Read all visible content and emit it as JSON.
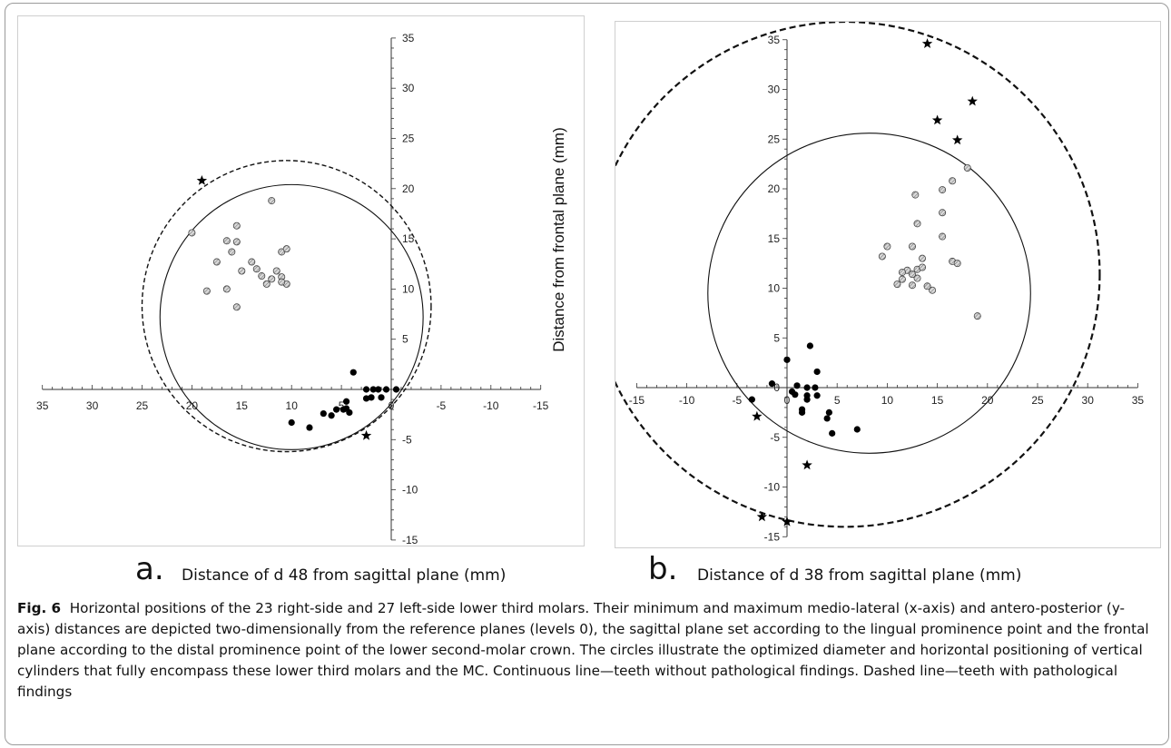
{
  "panels": [
    {
      "letter": "a.",
      "xlabel": "Distance of d 48 from sagittal plane (mm)",
      "ylabel": ""
    },
    {
      "letter": "b.",
      "xlabel": "Distance of d 38 from sagittal plane (mm)",
      "ylabel": "Distance from frontal plane (mm)"
    }
  ],
  "caption": {
    "label": "Fig. 6",
    "text": "Horizontal positions of the 23 right-side and 27 left-side lower third molars. Their minimum and maximum medio-lateral (x-axis) and antero-posterior (y-axis) distances are depicted two-dimensionally from the reference planes (levels 0), the sagittal plane set according to the lingual prominence point and the frontal plane according to the distal prominence point of the lower second-molar crown. The circles illustrate the optimized diameter and horizontal positioning of vertical cylinders that fully encompass these lower third molars and the MC. Continuous line—teeth without pathological findings. Dashed line—teeth with pathological findings"
  },
  "chart_data": [
    {
      "type": "scatter",
      "panel": "a",
      "x_reversed": true,
      "xlim": [
        35,
        -15
      ],
      "ylim": [
        -15,
        35
      ],
      "x_ticks": [
        35,
        30,
        25,
        20,
        15,
        10,
        5,
        0,
        -5,
        -10,
        -15
      ],
      "y_ticks": [
        -15,
        -10,
        -5,
        5,
        10,
        15,
        20,
        25,
        30,
        35
      ],
      "grid": false,
      "marker_legend": {
        "hatched_circle": "",
        "filled_circle": "",
        "star": ""
      },
      "series": [
        {
          "marker": "hatched_circle",
          "points": [
            [
              20,
              15.6
            ],
            [
              16.5,
              14.8
            ],
            [
              15.5,
              16.3
            ],
            [
              15.5,
              14.7
            ],
            [
              17.5,
              12.7
            ],
            [
              16,
              13.7
            ],
            [
              15,
              11.8
            ],
            [
              14,
              12.7
            ],
            [
              13.5,
              12.0
            ],
            [
              13,
              11.3
            ],
            [
              12.5,
              10.5
            ],
            [
              12,
              11.0
            ],
            [
              11.5,
              11.8
            ],
            [
              11,
              13.7
            ],
            [
              10.5,
              14.0
            ],
            [
              11,
              11.2
            ],
            [
              10.5,
              10.5
            ],
            [
              11,
              10.7
            ],
            [
              18.5,
              9.8
            ],
            [
              16.5,
              10.0
            ],
            [
              15.5,
              8.2
            ],
            [
              12,
              18.8
            ]
          ]
        },
        {
          "marker": "filled_circle",
          "points": [
            [
              3.8,
              1.7
            ],
            [
              2.5,
              0.0
            ],
            [
              1.8,
              0.0
            ],
            [
              1.3,
              0.0
            ],
            [
              0.5,
              0.0
            ],
            [
              -0.5,
              0.0
            ],
            [
              2.5,
              -0.9
            ],
            [
              2,
              -0.8
            ],
            [
              1,
              -0.8
            ],
            [
              4.5,
              -1.2
            ],
            [
              4.5,
              -1.9
            ],
            [
              4.8,
              -2.0
            ],
            [
              4.2,
              -2.3
            ],
            [
              5.5,
              -2.0
            ],
            [
              6,
              -2.6
            ],
            [
              6.8,
              -2.4
            ],
            [
              8.2,
              -3.8
            ],
            [
              10,
              -3.3
            ]
          ]
        },
        {
          "marker": "star",
          "points": [
            [
              19,
              20.8
            ],
            [
              2.5,
              -4.6
            ]
          ]
        }
      ],
      "circles": [
        {
          "style": "solid",
          "center": [
            10,
            7.2
          ],
          "radius": 13.2
        },
        {
          "style": "dashed",
          "center": [
            10.5,
            8.3
          ],
          "radius": 14.5
        }
      ]
    },
    {
      "type": "scatter",
      "panel": "b",
      "x_reversed": false,
      "xlim": [
        -15,
        35
      ],
      "ylim": [
        -15,
        35
      ],
      "x_ticks": [
        -15,
        -10,
        -5,
        0,
        5,
        10,
        15,
        20,
        25,
        30,
        35
      ],
      "y_ticks": [
        -15,
        -10,
        -5,
        0,
        5,
        10,
        15,
        20,
        25,
        30,
        35
      ],
      "grid": false,
      "marker_legend": {
        "hatched_circle": "",
        "filled_circle": "",
        "star": ""
      },
      "series": [
        {
          "marker": "hatched_circle",
          "points": [
            [
              18,
              22.1
            ],
            [
              16.5,
              20.8
            ],
            [
              15.5,
              19.9
            ],
            [
              12.8,
              19.4
            ],
            [
              15.5,
              17.6
            ],
            [
              13,
              16.5
            ],
            [
              15.5,
              15.2
            ],
            [
              10,
              14.2
            ],
            [
              12.5,
              14.2
            ],
            [
              9.5,
              13.2
            ],
            [
              13.5,
              13.0
            ],
            [
              16.5,
              12.7
            ],
            [
              17,
              12.5
            ],
            [
              12,
              11.8
            ],
            [
              13,
              11.9
            ],
            [
              13.5,
              12.1
            ],
            [
              11.5,
              11.6
            ],
            [
              12.5,
              11.4
            ],
            [
              13,
              11.0
            ],
            [
              11.5,
              10.9
            ],
            [
              11,
              10.4
            ],
            [
              12.5,
              10.3
            ],
            [
              14,
              10.2
            ],
            [
              14.5,
              9.8
            ],
            [
              19,
              7.2
            ]
          ]
        },
        {
          "marker": "filled_circle",
          "points": [
            [
              0,
              2.8
            ],
            [
              2.3,
              4.2
            ],
            [
              3,
              1.6
            ],
            [
              -1.5,
              0.4
            ],
            [
              1,
              0.2
            ],
            [
              2,
              0.0
            ],
            [
              2.8,
              0.0
            ],
            [
              0.5,
              -0.4
            ],
            [
              0.8,
              -0.7
            ],
            [
              2,
              -0.8
            ],
            [
              3,
              -0.8
            ],
            [
              2,
              -1.2
            ],
            [
              1.5,
              -2.2
            ],
            [
              -3.5,
              -1.2
            ],
            [
              1.5,
              -2.5
            ],
            [
              4.2,
              -2.5
            ],
            [
              4,
              -3.1
            ],
            [
              7,
              -4.2
            ],
            [
              4.5,
              -4.6
            ]
          ]
        },
        {
          "marker": "star",
          "points": [
            [
              14,
              34.6
            ],
            [
              18.5,
              28.8
            ],
            [
              15,
              26.9
            ],
            [
              17,
              24.9
            ],
            [
              -3,
              -2.9
            ],
            [
              2,
              -7.8
            ],
            [
              -2.5,
              -13.0
            ],
            [
              0,
              -13.5
            ]
          ]
        }
      ],
      "circles": [
        {
          "style": "solid",
          "center": [
            8.2,
            9.5
          ],
          "radius": 16.1
        },
        {
          "style": "dashed",
          "center": [
            5.8,
            11.4
          ],
          "radius": 25.4
        }
      ]
    }
  ]
}
